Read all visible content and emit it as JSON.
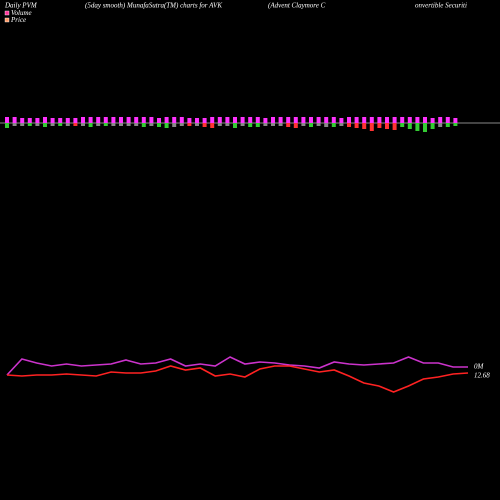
{
  "chart_data": {
    "type": "pvm",
    "title": "Daily PVM",
    "subtitle": "(5day smooth) MunafaSutra(TM) charts for AVK",
    "annotations": [
      "(Advent Claymore C",
      "onvertible Securiti"
    ],
    "end_labels": [
      "0M",
      "12.68"
    ],
    "bars": {
      "up_color": "#ff33ff",
      "up": [
        6,
        6,
        5,
        5,
        5,
        6,
        5,
        5,
        5,
        5,
        6,
        6,
        6,
        6,
        6,
        6,
        6,
        6,
        6,
        6,
        5,
        6,
        6,
        6,
        5,
        5,
        5,
        6,
        6,
        6,
        6,
        6,
        6,
        6,
        5,
        6,
        6,
        6,
        6,
        6,
        6,
        6,
        6,
        6,
        5,
        6,
        6,
        6,
        6,
        6,
        6,
        6,
        6,
        6,
        6,
        6,
        5,
        6,
        6,
        5
      ],
      "down": [
        5,
        3,
        3,
        3,
        3,
        4,
        3,
        3,
        3,
        3,
        3,
        4,
        3,
        3,
        3,
        3,
        3,
        3,
        4,
        3,
        4,
        5,
        4,
        3,
        3,
        3,
        4,
        5,
        3,
        3,
        5,
        3,
        4,
        4,
        3,
        3,
        3,
        4,
        5,
        3,
        4,
        3,
        4,
        4,
        3,
        4,
        5,
        6,
        8,
        5,
        6,
        7,
        4,
        6,
        8,
        9,
        6,
        4,
        4,
        3
      ],
      "down_colors": [
        "#33cc33",
        "#888888",
        "#888888",
        "#33cc33",
        "#888888",
        "#33cc33",
        "#888888",
        "#33cc33",
        "#888888",
        "#ff3333",
        "#888888",
        "#33cc33",
        "#888888",
        "#33cc33",
        "#888888",
        "#888888",
        "#888888",
        "#888888",
        "#33cc33",
        "#888888",
        "#33cc33",
        "#33cc33",
        "#888888",
        "#888888",
        "#ff3333",
        "#888888",
        "#ff3333",
        "#ff3333",
        "#888888",
        "#888888",
        "#33cc33",
        "#888888",
        "#33cc33",
        "#33cc33",
        "#888888",
        "#888888",
        "#888888",
        "#ff3333",
        "#ff3333",
        "#888888",
        "#33cc33",
        "#888888",
        "#888888",
        "#33cc33",
        "#888888",
        "#ff3333",
        "#ff3333",
        "#ff3333",
        "#ff3333",
        "#ff3333",
        "#ff3333",
        "#ff3333",
        "#33cc33",
        "#33cc33",
        "#33cc33",
        "#33cc33",
        "#33cc33",
        "#888888",
        "#33cc33",
        "#33cc33"
      ]
    },
    "series": [
      {
        "name": "Volume",
        "color": "#ff3399",
        "values": [
          12.64,
          12.96,
          12.88,
          12.82,
          12.86,
          12.82,
          12.84,
          12.86,
          12.94,
          12.86,
          12.88,
          12.96,
          12.82,
          12.86,
          12.82,
          13.0,
          12.86,
          12.9,
          12.88,
          12.84,
          12.82,
          12.78,
          12.9,
          12.86,
          12.84,
          12.86,
          12.88,
          13.0,
          12.88,
          12.88,
          12.8,
          12.8
        ],
        "line_color": "#cc33cc"
      },
      {
        "name": "Price",
        "color": "#ff9966",
        "values": [
          12.64,
          12.62,
          12.64,
          12.64,
          12.66,
          12.64,
          12.62,
          12.7,
          12.68,
          12.68,
          12.72,
          12.82,
          12.74,
          12.78,
          12.62,
          12.66,
          12.6,
          12.76,
          12.82,
          12.82,
          12.76,
          12.7,
          12.74,
          12.62,
          12.48,
          12.42,
          12.3,
          12.42,
          12.56,
          12.6,
          12.66,
          12.68
        ],
        "line_color": "#ff2222"
      }
    ]
  }
}
